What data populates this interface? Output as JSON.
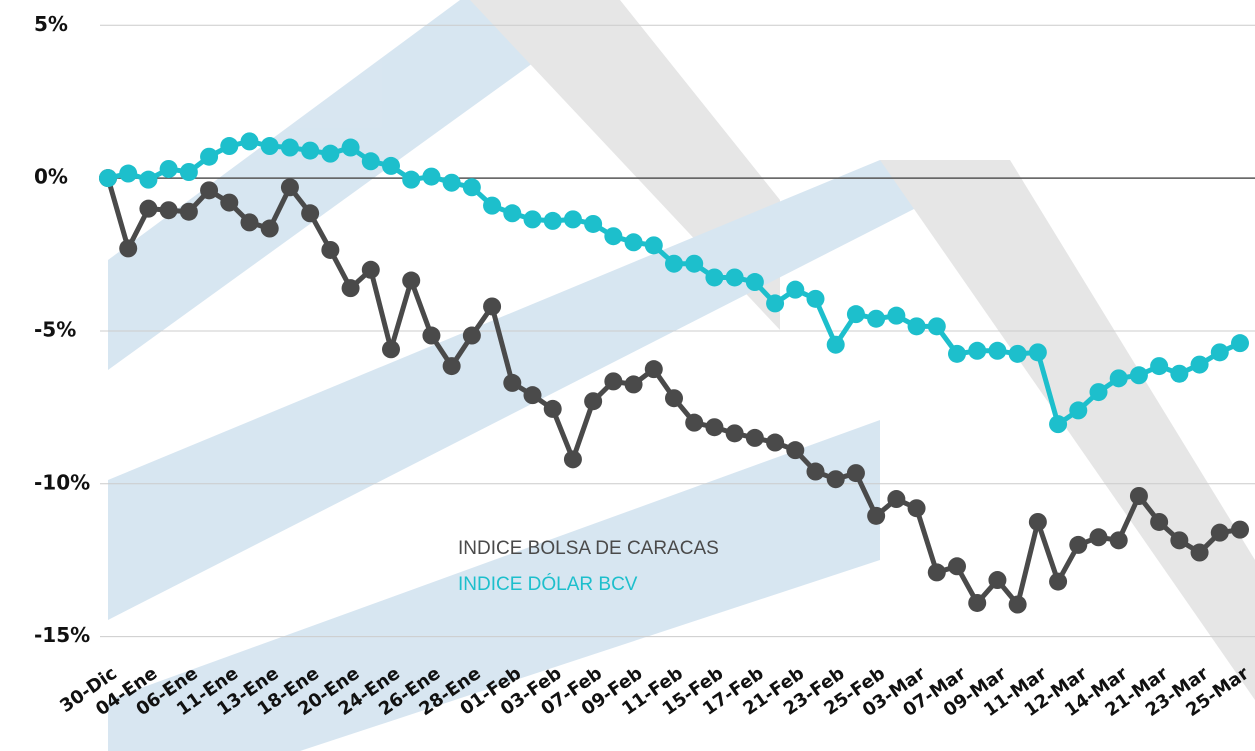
{
  "chart_data": {
    "type": "line",
    "categories": [
      "30-Dic",
      null,
      "04-Ene",
      null,
      "06-Ene",
      null,
      "11-Ene",
      null,
      "13-Ene",
      null,
      "18-Ene",
      null,
      "20-Ene",
      null,
      "24-Ene",
      null,
      "26-Ene",
      null,
      "28-Ene",
      null,
      "01-Feb",
      null,
      "03-Feb",
      null,
      "07-Feb",
      null,
      "09-Feb",
      null,
      "11-Feb",
      null,
      "15-Feb",
      null,
      "17-Feb",
      null,
      "21-Feb",
      null,
      "23-Feb",
      null,
      "25-Feb",
      null,
      "03-Mar",
      null,
      "07-Mar",
      null,
      "09-Mar",
      null,
      "11-Mar",
      null,
      "12-Mar",
      null,
      "14-Mar",
      null,
      "21-Mar",
      null,
      "23-Mar",
      null,
      "25-Mar"
    ],
    "series": [
      {
        "name": "INDICE BOLSA DE CARACAS",
        "color": "#4a4a4a",
        "values": [
          0,
          -2.3,
          -1.0,
          -1.05,
          -1.1,
          -0.4,
          -0.8,
          -1.45,
          -1.65,
          -0.3,
          -1.15,
          -2.35,
          -3.6,
          -3.0,
          -5.6,
          -3.35,
          -5.15,
          -6.15,
          -5.15,
          -4.2,
          -6.7,
          -7.1,
          -7.55,
          -9.2,
          -7.3,
          -6.65,
          -6.75,
          -6.25,
          -7.2,
          -8.0,
          -8.15,
          -8.35,
          -8.5,
          -8.65,
          -8.9,
          -9.6,
          -9.85,
          -9.65,
          -11.05,
          -10.5,
          -10.8,
          -12.9,
          -12.7,
          -13.9,
          -13.15,
          -13.95,
          -11.25,
          -13.2,
          -12.0,
          -11.75,
          -11.85,
          -10.4,
          -11.25,
          -11.85,
          -12.25,
          -11.6,
          -11.5
        ]
      },
      {
        "name": "INDICE DÓLAR BCV",
        "color": "#1dbfcc",
        "values": [
          0,
          0.15,
          -0.05,
          0.3,
          0.2,
          0.7,
          1.05,
          1.2,
          1.05,
          1.0,
          0.9,
          0.8,
          1.0,
          0.55,
          0.4,
          -0.05,
          0.05,
          -0.15,
          -0.3,
          -0.9,
          -1.15,
          -1.35,
          -1.4,
          -1.35,
          -1.5,
          -1.9,
          -2.1,
          -2.2,
          -2.8,
          -2.8,
          -3.25,
          -3.25,
          -3.4,
          -4.1,
          -3.65,
          -3.95,
          -5.45,
          -4.45,
          -4.6,
          -4.5,
          -4.85,
          -4.85,
          -5.75,
          -5.65,
          -5.65,
          -5.75,
          -5.7,
          -8.05,
          -7.6,
          -7.0,
          -6.55,
          -6.45,
          -6.15,
          -6.4,
          -6.1,
          -5.7,
          -5.4
        ]
      }
    ],
    "ylim": [
      -15.7,
      5.5
    ],
    "yticks": [
      {
        "value": 5,
        "label": "5%"
      },
      {
        "value": 0,
        "label": "0%"
      },
      {
        "value": -5,
        "label": "-5%"
      },
      {
        "value": -10,
        "label": "-10%"
      },
      {
        "value": -15,
        "label": "-15%"
      }
    ],
    "grid": true
  }
}
